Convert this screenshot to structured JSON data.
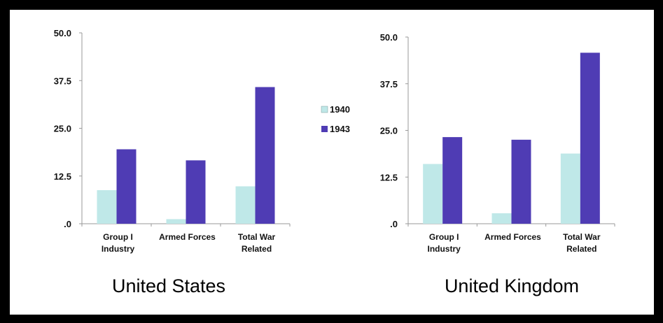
{
  "colors": {
    "s1940": "#bfe8e8",
    "s1943": "#4f3cb4",
    "axis": "#9a9a9a",
    "frame": "#000000"
  },
  "legend": {
    "placement": "center-between-charts",
    "items": [
      "1940",
      "1943"
    ]
  },
  "chart_data": [
    {
      "type": "bar",
      "title": "United States",
      "categories": [
        [
          "Group I",
          "Industry"
        ],
        [
          "Armed Forces"
        ],
        [
          "Total War",
          "Related"
        ]
      ],
      "series": [
        {
          "name": "1940",
          "values": [
            8.8,
            1.2,
            9.8
          ]
        },
        {
          "name": "1943",
          "values": [
            19.5,
            16.6,
            35.8
          ]
        }
      ],
      "y_ticks": [
        ".0",
        "12.5",
        "25.0",
        "37.5",
        "50.0"
      ],
      "ylim": [
        0,
        50
      ],
      "grid": false
    },
    {
      "type": "bar",
      "title": "United Kingdom",
      "categories": [
        [
          "Group I",
          "Industry"
        ],
        [
          "Armed Forces"
        ],
        [
          "Total War",
          "Related"
        ]
      ],
      "series": [
        {
          "name": "1940",
          "values": [
            16.0,
            2.8,
            18.8
          ]
        },
        {
          "name": "1943",
          "values": [
            23.2,
            22.5,
            45.8
          ]
        }
      ],
      "y_ticks": [
        ".0",
        "12.5",
        "25.0",
        "37.5",
        "50.0"
      ],
      "ylim": [
        0,
        50
      ],
      "grid": false
    }
  ]
}
